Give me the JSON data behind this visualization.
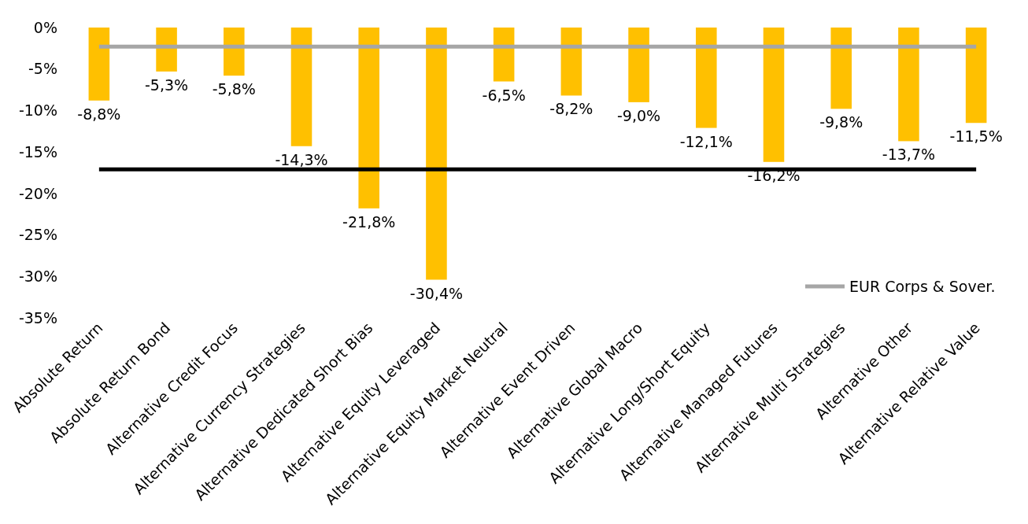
{
  "chart_data": {
    "type": "bar",
    "categories": [
      "Absolute Return",
      "Absolute Return Bond",
      "Alternative Credit Focus",
      "Alternative Currency Strategies",
      "Alternative Dedicated Short Bias",
      "Alternative Equity Leveraged",
      "Alternative Equity Market Neutral",
      "Alternative Event Driven",
      "Alternative Global Macro",
      "Alternative Long/Short Equity",
      "Alternative Managed Futures",
      "Alternative Multi Strategies",
      "Alternative Other",
      "Alternative Relative Value"
    ],
    "ylim": [
      -35,
      0
    ],
    "yticks": [
      {
        "value": 0,
        "label": "0%"
      },
      {
        "value": -5,
        "label": "-5%"
      },
      {
        "value": -10,
        "label": "-10%"
      },
      {
        "value": -15,
        "label": "-15%"
      },
      {
        "value": -20,
        "label": "-20%"
      },
      {
        "value": -25,
        "label": "-25%"
      },
      {
        "value": -30,
        "label": "-30%"
      },
      {
        "value": -35,
        "label": "-35%"
      }
    ],
    "legend": "bottom right",
    "series": [
      {
        "color": "#ffc000",
        "values": [
          -8.8,
          -5.3,
          -5.8,
          -14.3,
          -21.8,
          -30.4,
          -6.5,
          -8.2,
          -9.0,
          -12.1,
          -16.2,
          -9.8,
          -13.7,
          -11.5
        ],
        "value_labels": [
          "-8,8%",
          "-5,3%",
          "-5,8%",
          "-14,3%",
          "-21,8%",
          "-30,4%",
          "-6,5%",
          "-8,2%",
          "-9,0%",
          "-12,1%",
          "-16,2%",
          "-9,8%",
          "-13,7%",
          "-11,5%"
        ]
      },
      {
        "type": "line",
        "color": "#000000",
        "values": [
          -17.1,
          -17.1,
          -17.1,
          -17.1,
          -17.1,
          -17.1,
          -17.1,
          -17.1,
          -17.1,
          -17.1,
          -17.1,
          -17.1,
          -17.1,
          -17.1
        ]
      },
      {
        "type": "line",
        "name": "EUR Corps & Sover.",
        "color": "#a6a6a6",
        "values": [
          -2.3,
          -2.3,
          -2.3,
          -2.3,
          -2.3,
          -2.3,
          -2.3,
          -2.3,
          -2.3,
          -2.3,
          -2.3,
          -2.3,
          -2.3,
          -2.3
        ]
      }
    ]
  }
}
